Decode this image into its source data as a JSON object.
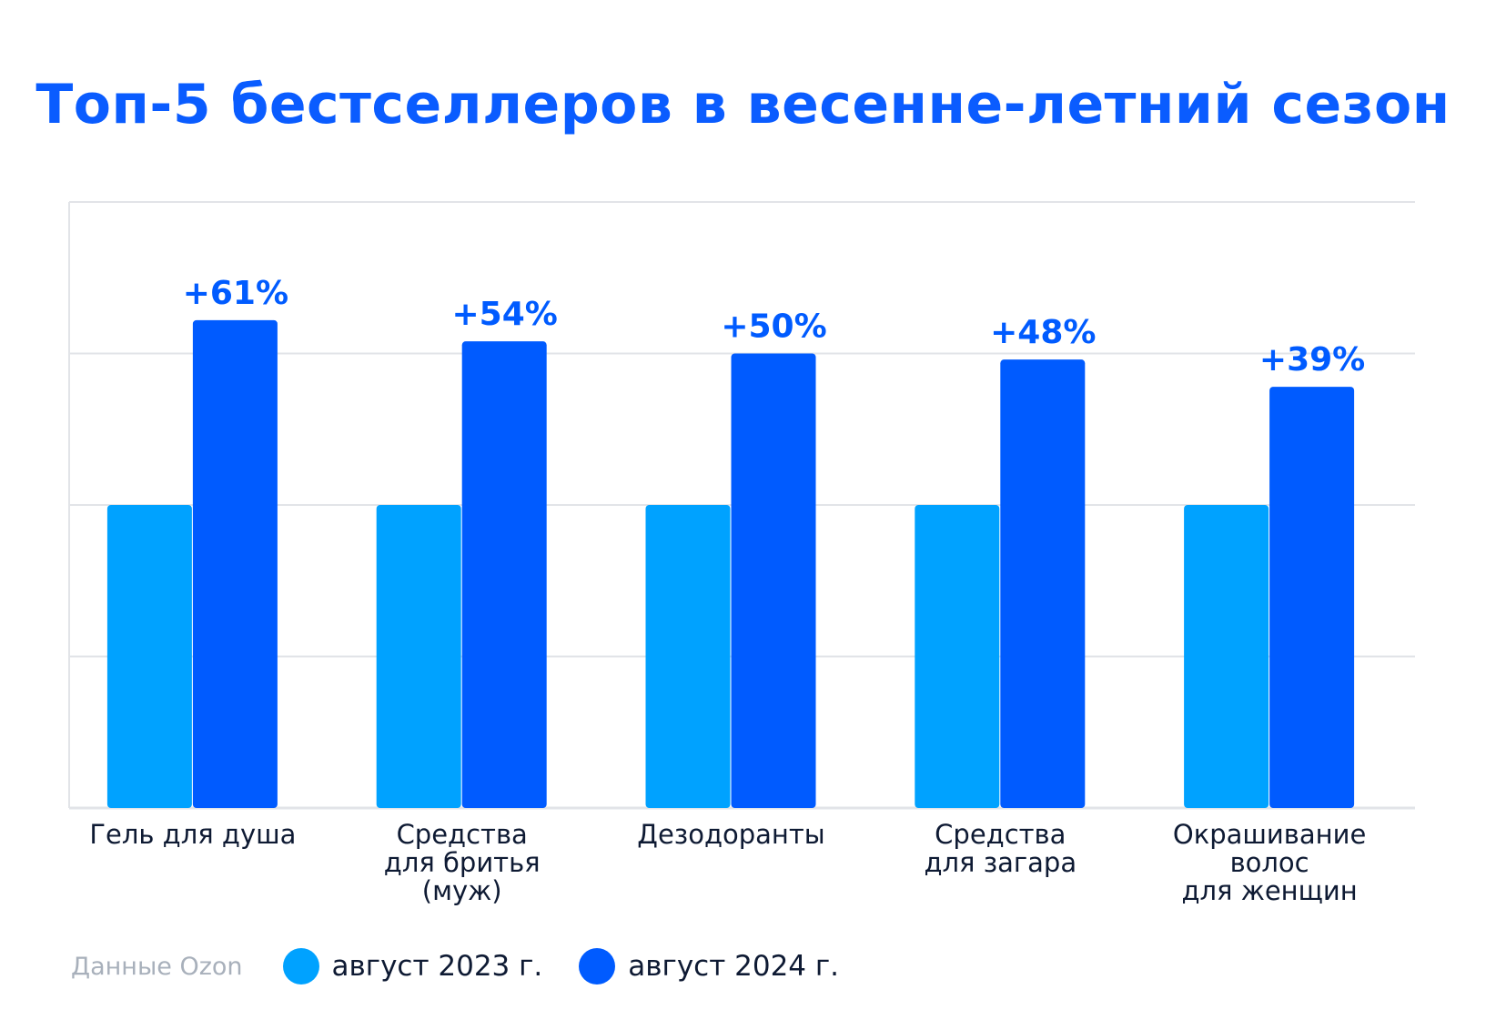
{
  "title": "Топ-5 бестселлеров в весенне-летний сезон",
  "source": "Данные Ozon",
  "colors": {
    "series_2023": "#00a2ff",
    "series_2024": "#005bff",
    "text_dark": "#0e1a33",
    "grid": "#e2e4e8",
    "title": "#0a5cff"
  },
  "chart_data": {
    "type": "bar",
    "title": "Топ-5 бестселлеров в весенне-летний сезон",
    "categories": [
      [
        "Гель для душа"
      ],
      [
        "Средства",
        "для бритья",
        "(муж)"
      ],
      [
        "Дезодоранты"
      ],
      [
        "Средства",
        "для загара"
      ],
      [
        "Окрашивание",
        "волос",
        "для женщин"
      ]
    ],
    "series": [
      {
        "name": "август 2023 г.",
        "values": [
          100,
          100,
          100,
          100,
          100
        ]
      },
      {
        "name": "август 2024 г.",
        "values": [
          161,
          154,
          150,
          148,
          139
        ]
      }
    ],
    "data_labels": [
      "+61%",
      "+54%",
      "+50%",
      "+48%",
      "+39%"
    ],
    "ylim": [
      0,
      200
    ],
    "grid": true,
    "legend_position": "bottom-left",
    "xlabel": "",
    "ylabel": ""
  }
}
